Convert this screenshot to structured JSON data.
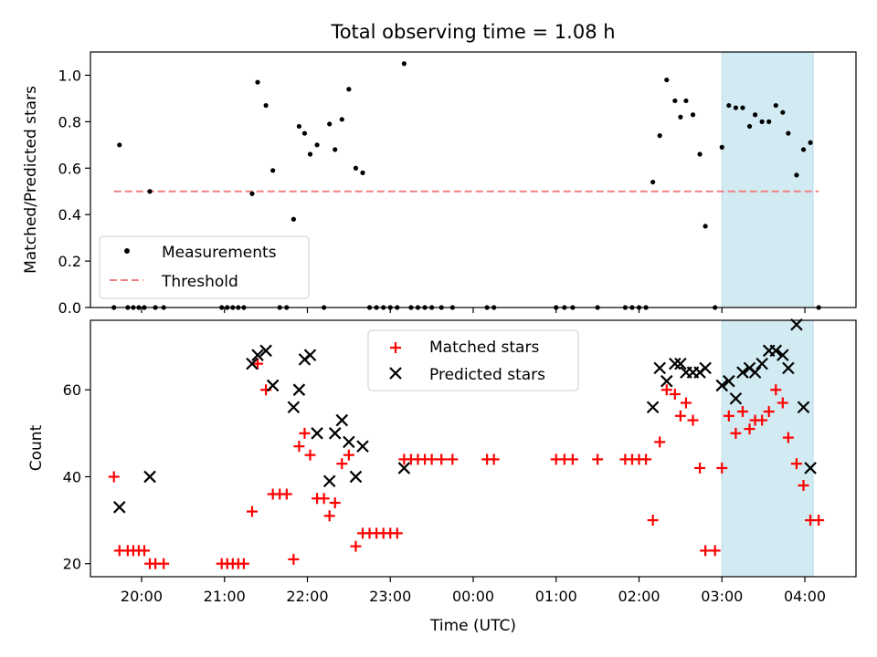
{
  "title": "Total observing time = 1.08 h",
  "xlabel": "Time (UTC)",
  "colors": {
    "measurements": "#000000",
    "threshold": "#f08080",
    "matched": "#ff0000",
    "predicted": "#000000",
    "highlight": "#add8e6"
  },
  "chart_data": [
    {
      "type": "scatter",
      "title": "Total observing time = 1.08 h",
      "ylabel": "Matched/Predicted stars",
      "xlim": [
        "19:23",
        "04:37"
      ],
      "ylim": [
        0,
        1.1
      ],
      "yticks": [
        0.0,
        0.2,
        0.4,
        0.6,
        0.8,
        1.0
      ],
      "ytick_labels": [
        "0.0",
        "0.2",
        "0.4",
        "0.6",
        "0.8",
        "1.0"
      ],
      "legend": {
        "placement": "lower-left",
        "entries": [
          "Measurements",
          "Threshold"
        ]
      },
      "highlight_span": [
        "03:00",
        "04:06"
      ],
      "threshold": {
        "name": "Threshold",
        "y": 0.5,
        "x": [
          "19:40",
          "04:10"
        ]
      },
      "series": [
        {
          "name": "Measurements",
          "marker": "dot",
          "points": [
            [
              "19:40",
              0
            ],
            [
              "19:44",
              0.7
            ],
            [
              "19:50",
              0
            ],
            [
              "19:54",
              0
            ],
            [
              "19:58",
              0
            ],
            [
              "20:02",
              0
            ],
            [
              "20:06",
              0.5
            ],
            [
              "20:10",
              0
            ],
            [
              "20:16",
              0
            ],
            [
              "20:58",
              0
            ],
            [
              "21:02",
              0
            ],
            [
              "21:06",
              0
            ],
            [
              "21:10",
              0
            ],
            [
              "21:14",
              0
            ],
            [
              "21:20",
              0.49
            ],
            [
              "21:24",
              0.97
            ],
            [
              "21:30",
              0.87
            ],
            [
              "21:35",
              0.59
            ],
            [
              "21:40",
              0
            ],
            [
              "21:45",
              0
            ],
            [
              "21:50",
              0.38
            ],
            [
              "21:54",
              0.78
            ],
            [
              "21:58",
              0.75
            ],
            [
              "22:02",
              0.66
            ],
            [
              "22:07",
              0.7
            ],
            [
              "22:12",
              0
            ],
            [
              "22:16",
              0.79
            ],
            [
              "22:20",
              0.68
            ],
            [
              "22:25",
              0.81
            ],
            [
              "22:30",
              0.94
            ],
            [
              "22:35",
              0.6
            ],
            [
              "22:40",
              0.58
            ],
            [
              "22:45",
              0
            ],
            [
              "22:50",
              0
            ],
            [
              "22:55",
              0
            ],
            [
              "23:00",
              0
            ],
            [
              "23:05",
              0
            ],
            [
              "23:10",
              1.05
            ],
            [
              "23:15",
              0
            ],
            [
              "23:20",
              0
            ],
            [
              "23:25",
              0
            ],
            [
              "23:30",
              0
            ],
            [
              "23:37",
              0
            ],
            [
              "23:45",
              0
            ],
            [
              "00:10",
              0
            ],
            [
              "00:15",
              0
            ],
            [
              "01:00",
              0
            ],
            [
              "01:06",
              0
            ],
            [
              "01:12",
              0
            ],
            [
              "01:30",
              0
            ],
            [
              "01:50",
              0
            ],
            [
              "01:55",
              0
            ],
            [
              "02:00",
              0
            ],
            [
              "02:05",
              0
            ],
            [
              "02:10",
              0.54
            ],
            [
              "02:15",
              0.74
            ],
            [
              "02:20",
              0.98
            ],
            [
              "02:26",
              0.89
            ],
            [
              "02:30",
              0.82
            ],
            [
              "02:34",
              0.89
            ],
            [
              "02:39",
              0.83
            ],
            [
              "02:44",
              0.66
            ],
            [
              "02:48",
              0.35
            ],
            [
              "02:55",
              0
            ],
            [
              "03:00",
              0.69
            ],
            [
              "03:05",
              0.87
            ],
            [
              "03:10",
              0.86
            ],
            [
              "03:15",
              0.86
            ],
            [
              "03:20",
              0.78
            ],
            [
              "03:24",
              0.83
            ],
            [
              "03:29",
              0.8
            ],
            [
              "03:34",
              0.8
            ],
            [
              "03:39",
              0.87
            ],
            [
              "03:44",
              0.84
            ],
            [
              "03:48",
              0.75
            ],
            [
              "03:54",
              0.57
            ],
            [
              "03:59",
              0.68
            ],
            [
              "04:04",
              0.71
            ],
            [
              "04:10",
              0
            ]
          ]
        }
      ]
    },
    {
      "type": "scatter",
      "ylabel": "Count",
      "xlabel": "Time (UTC)",
      "xlim": [
        "19:23",
        "04:37"
      ],
      "ylim": [
        17,
        76
      ],
      "yticks": [
        20,
        40,
        60
      ],
      "xticks": [
        "20:00",
        "21:00",
        "22:00",
        "23:00",
        "00:00",
        "01:00",
        "02:00",
        "03:00",
        "04:00"
      ],
      "legend": {
        "placement": "upper-center",
        "entries": [
          "Matched stars",
          "Predicted stars"
        ]
      },
      "highlight_span": [
        "03:00",
        "04:06"
      ],
      "series": [
        {
          "name": "Matched stars",
          "marker": "plus",
          "points": [
            [
              "19:40",
              40
            ],
            [
              "19:44",
              23
            ],
            [
              "19:50",
              23
            ],
            [
              "19:54",
              23
            ],
            [
              "19:58",
              23
            ],
            [
              "20:02",
              23
            ],
            [
              "20:06",
              20
            ],
            [
              "20:10",
              20
            ],
            [
              "20:16",
              20
            ],
            [
              "20:58",
              20
            ],
            [
              "21:02",
              20
            ],
            [
              "21:06",
              20
            ],
            [
              "21:10",
              20
            ],
            [
              "21:14",
              20
            ],
            [
              "21:20",
              32
            ],
            [
              "21:24",
              66
            ],
            [
              "21:30",
              60
            ],
            [
              "21:35",
              36
            ],
            [
              "21:40",
              36
            ],
            [
              "21:45",
              36
            ],
            [
              "21:50",
              21
            ],
            [
              "21:54",
              47
            ],
            [
              "21:58",
              50
            ],
            [
              "22:02",
              45
            ],
            [
              "22:07",
              35
            ],
            [
              "22:12",
              35
            ],
            [
              "22:16",
              31
            ],
            [
              "22:20",
              34
            ],
            [
              "22:25",
              43
            ],
            [
              "22:30",
              45
            ],
            [
              "22:35",
              24
            ],
            [
              "22:40",
              27
            ],
            [
              "22:45",
              27
            ],
            [
              "22:50",
              27
            ],
            [
              "22:55",
              27
            ],
            [
              "23:00",
              27
            ],
            [
              "23:05",
              27
            ],
            [
              "23:10",
              44
            ],
            [
              "23:15",
              44
            ],
            [
              "23:20",
              44
            ],
            [
              "23:25",
              44
            ],
            [
              "23:30",
              44
            ],
            [
              "23:37",
              44
            ],
            [
              "23:45",
              44
            ],
            [
              "00:10",
              44
            ],
            [
              "00:15",
              44
            ],
            [
              "01:00",
              44
            ],
            [
              "01:06",
              44
            ],
            [
              "01:12",
              44
            ],
            [
              "01:30",
              44
            ],
            [
              "01:50",
              44
            ],
            [
              "01:55",
              44
            ],
            [
              "02:00",
              44
            ],
            [
              "02:05",
              44
            ],
            [
              "02:10",
              30
            ],
            [
              "02:15",
              48
            ],
            [
              "02:20",
              60
            ],
            [
              "02:26",
              59
            ],
            [
              "02:30",
              54
            ],
            [
              "02:34",
              57
            ],
            [
              "02:39",
              53
            ],
            [
              "02:44",
              42
            ],
            [
              "02:48",
              23
            ],
            [
              "02:55",
              23
            ],
            [
              "03:00",
              42
            ],
            [
              "03:05",
              54
            ],
            [
              "03:10",
              50
            ],
            [
              "03:15",
              55
            ],
            [
              "03:20",
              51
            ],
            [
              "03:24",
              53
            ],
            [
              "03:29",
              53
            ],
            [
              "03:34",
              55
            ],
            [
              "03:39",
              60
            ],
            [
              "03:44",
              57
            ],
            [
              "03:48",
              49
            ],
            [
              "03:54",
              43
            ],
            [
              "03:59",
              38
            ],
            [
              "04:04",
              30
            ],
            [
              "04:10",
              30
            ]
          ]
        },
        {
          "name": "Predicted stars",
          "marker": "x",
          "points": [
            [
              "19:44",
              33
            ],
            [
              "20:06",
              40
            ],
            [
              "21:20",
              66
            ],
            [
              "21:24",
              68
            ],
            [
              "21:30",
              69
            ],
            [
              "21:35",
              61
            ],
            [
              "21:50",
              56
            ],
            [
              "21:54",
              60
            ],
            [
              "21:58",
              67
            ],
            [
              "22:02",
              68
            ],
            [
              "22:07",
              50
            ],
            [
              "22:16",
              39
            ],
            [
              "22:20",
              50
            ],
            [
              "22:25",
              53
            ],
            [
              "22:30",
              48
            ],
            [
              "22:35",
              40
            ],
            [
              "22:40",
              47
            ],
            [
              "23:10",
              42
            ],
            [
              "02:10",
              56
            ],
            [
              "02:15",
              65
            ],
            [
              "02:20",
              62
            ],
            [
              "02:26",
              66
            ],
            [
              "02:30",
              66
            ],
            [
              "02:34",
              64
            ],
            [
              "02:39",
              64
            ],
            [
              "02:44",
              64
            ],
            [
              "02:48",
              65
            ],
            [
              "03:00",
              61
            ],
            [
              "03:05",
              62
            ],
            [
              "03:10",
              58
            ],
            [
              "03:15",
              64
            ],
            [
              "03:20",
              65
            ],
            [
              "03:24",
              64
            ],
            [
              "03:29",
              66
            ],
            [
              "03:34",
              69
            ],
            [
              "03:39",
              69
            ],
            [
              "03:44",
              68
            ],
            [
              "03:48",
              65
            ],
            [
              "03:54",
              75
            ],
            [
              "03:59",
              56
            ],
            [
              "04:04",
              42
            ]
          ]
        }
      ]
    }
  ]
}
